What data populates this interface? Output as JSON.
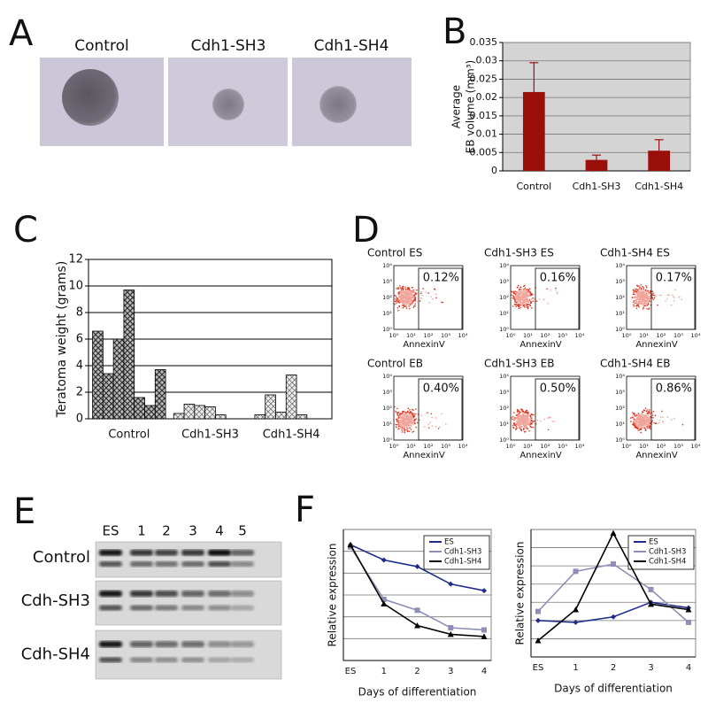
{
  "panel_a": {
    "letter": "A",
    "labels": [
      "Control",
      "Cdh1-SH3",
      "Cdh1-SH4"
    ]
  },
  "panel_d": {
    "letter": "D",
    "plots": [
      {
        "title": "Control ES",
        "percent": "0.12%"
      },
      {
        "title": "Cdh1-SH3 ES",
        "percent": "0.16%"
      },
      {
        "title": "Cdh1-SH4 ES",
        "percent": "0.17%"
      },
      {
        "title": "Control EB",
        "percent": "0.40%"
      },
      {
        "title": "Cdh1-SH3 EB",
        "percent": "0.50%"
      },
      {
        "title": "Cdh1-SH4 EB",
        "percent": "0.86%"
      }
    ],
    "xlabel": "AnnexinV",
    "axis_ticks": [
      "10⁰",
      "10¹",
      "10²",
      "10³",
      "10⁴"
    ]
  },
  "panel_e": {
    "letter": "E",
    "columns": [
      "ES",
      "1",
      "2",
      "3",
      "4",
      "5"
    ],
    "rows": [
      "Control",
      "Cdh-SH3",
      "Cdh-SH4"
    ]
  },
  "chart_data": [
    {
      "type": "bar",
      "letter": "B",
      "ylabel": [
        "Average",
        "EB volume (mm³)"
      ],
      "categories": [
        "Control",
        "Cdh1-SH3",
        "Cdh1-SH4"
      ],
      "values": [
        0.0215,
        0.003,
        0.0055
      ],
      "errors": [
        0.008,
        0.0013,
        0.003
      ],
      "color": "#9b0f0b",
      "ylim": [
        0,
        0.035
      ],
      "yticks": [
        0,
        0.005,
        0.01,
        0.015,
        0.02,
        0.025,
        0.03,
        0.035
      ],
      "grid": true
    },
    {
      "type": "bar",
      "letter": "C",
      "ylabel": "Teratoma weight (grams)",
      "categories": [
        "Control",
        "Cdh1-SH3",
        "Cdh1-SH4"
      ],
      "values": [
        [
          6.6,
          3.4,
          6.0,
          9.7,
          1.6,
          1.0,
          3.7
        ],
        [
          0.4,
          1.1,
          1.0,
          0.9,
          0.3
        ],
        [
          0.3,
          1.8,
          0.5,
          3.3,
          0.3
        ]
      ],
      "colors": [
        "#555555",
        "#999999",
        "#999999"
      ],
      "ylim": [
        0,
        12
      ],
      "yticks": [
        0,
        2,
        4,
        6,
        8,
        10,
        12
      ],
      "grid": true
    },
    {
      "type": "line",
      "letter": "F",
      "ylabel": "Relative expression",
      "xlabel": "Days of differentiation",
      "categories": [
        "ES",
        "1",
        "2",
        "3",
        "4"
      ],
      "series": [
        {
          "name": "ES",
          "color": "#1f2d8a",
          "values": [
            5.3,
            4.6,
            4.3,
            3.5,
            3.2
          ]
        },
        {
          "name": "Cdh1-SH3",
          "color": "#8f8fb5",
          "values": [
            5.2,
            2.8,
            2.3,
            1.5,
            1.4
          ]
        },
        {
          "name": "Cdh1-SH4",
          "color": "#000000",
          "values": [
            5.3,
            2.6,
            1.6,
            1.2,
            1.1
          ]
        }
      ],
      "ylim": [
        0,
        6
      ],
      "yticks": [
        0,
        1,
        2,
        3,
        4,
        5,
        6
      ],
      "show_ytick_labels": false,
      "grid": true
    },
    {
      "type": "line",
      "ylabel": "Relative expression",
      "xlabel": "Days of differentiation",
      "categories": [
        "ES",
        "1",
        "2",
        "3",
        "4"
      ],
      "series": [
        {
          "name": "ES",
          "color": "#1f2d8a",
          "values": [
            2.0,
            1.9,
            2.2,
            3.0,
            2.7
          ]
        },
        {
          "name": "Cdh1-SH3",
          "color": "#8f8fb5",
          "values": [
            2.5,
            4.7,
            5.1,
            3.7,
            1.9
          ]
        },
        {
          "name": "Cdh1-SH4",
          "color": "#000000",
          "values": [
            0.9,
            2.6,
            6.8,
            2.9,
            2.6
          ]
        }
      ],
      "ylim": [
        0,
        7
      ],
      "yticks": [
        0,
        1,
        2,
        3,
        4,
        5,
        6,
        7
      ],
      "show_ytick_labels": false,
      "grid": true
    }
  ]
}
